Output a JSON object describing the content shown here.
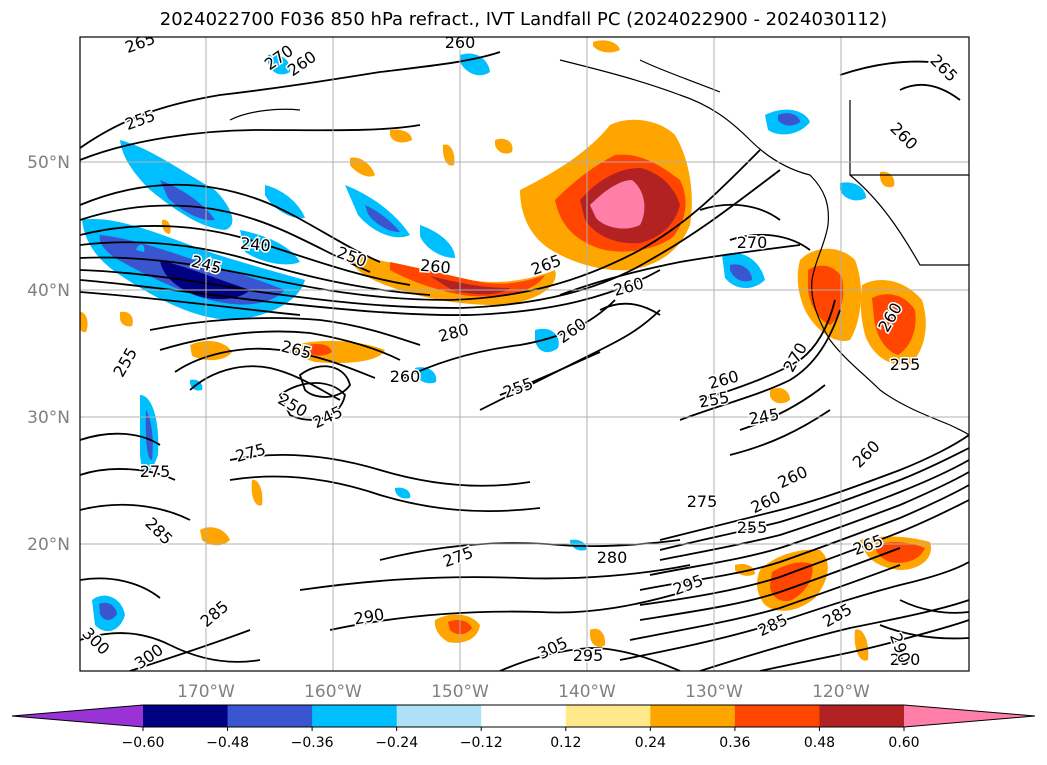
{
  "title": "2024022700 F036 850 hPa refract., IVT Landfall PC (2024022900 - 2024030112)",
  "lat_labels": [
    "50°N",
    "40°N",
    "30°N",
    "20°N"
  ],
  "lon_labels": [
    "170°W",
    "160°W",
    "150°W",
    "140°W",
    "130°W",
    "120°W"
  ],
  "colorbar": {
    "ticks": [
      "−0.60",
      "−0.48",
      "−0.36",
      "−0.24",
      "−0.12",
      "0.12",
      "0.24",
      "0.36",
      "0.48",
      "0.60"
    ],
    "colors": [
      "#9a33d6",
      "#000080",
      "#3a55d0",
      "#00bfff",
      "#aee0f8",
      "#ffffff",
      "#ffe98a",
      "#ffa500",
      "#ff4500",
      "#b22222",
      "#ff7fa8"
    ]
  },
  "contour_labels": [
    "265",
    "260",
    "260",
    "265",
    "255",
    "260",
    "240",
    "245",
    "250",
    "260",
    "265",
    "270",
    "270",
    "260",
    "260",
    "265",
    "255",
    "280",
    "250",
    "245",
    "260",
    "255",
    "260",
    "270",
    "260",
    "255",
    "245",
    "275",
    "275",
    "285",
    "275",
    "260",
    "260",
    "255",
    "280",
    "275",
    "295",
    "290",
    "285",
    "300",
    "305",
    "295",
    "300",
    "285",
    "290",
    "290",
    "285",
    "265",
    "260",
    "255"
  ]
}
